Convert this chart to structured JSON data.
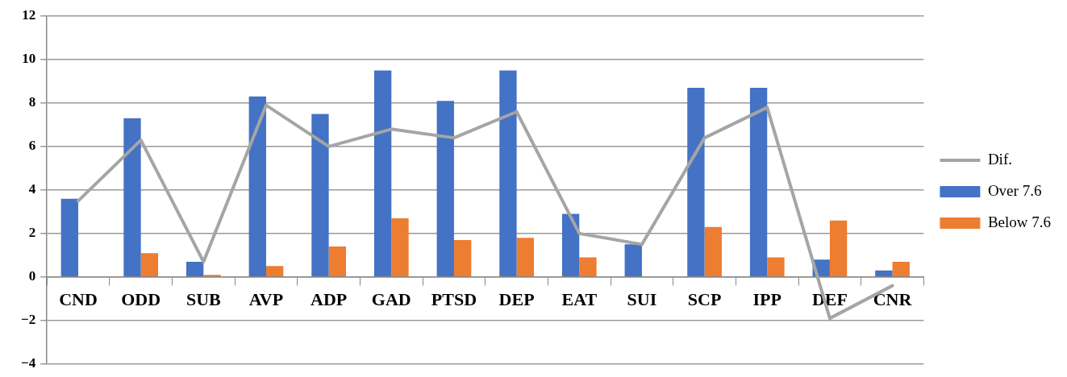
{
  "chart_data": {
    "type": "bar",
    "categories": [
      "CND",
      "ODD",
      "SUB",
      "AVP",
      "ADP",
      "GAD",
      "PTSD",
      "DEP",
      "EAT",
      "SUI",
      "SCP",
      "IPP",
      "DEF",
      "CNR"
    ],
    "series": [
      {
        "name": "Over 7.6",
        "color": "#4472c4",
        "values": [
          3.6,
          7.3,
          0.7,
          8.3,
          7.5,
          9.5,
          8.1,
          9.5,
          2.9,
          1.5,
          8.7,
          8.7,
          0.8,
          0.3
        ]
      },
      {
        "name": "Below 7.6",
        "color": "#ed7d31",
        "values": [
          0,
          1.1,
          0.1,
          0.5,
          1.4,
          2.7,
          1.7,
          1.8,
          0.9,
          0,
          2.3,
          0.9,
          2.6,
          0.7
        ]
      },
      {
        "name": "Dif.",
        "type": "line",
        "color": "#a5a5a5",
        "values": [
          3.5,
          6.3,
          0.7,
          7.9,
          6.0,
          6.8,
          6.4,
          7.6,
          2.0,
          1.5,
          6.4,
          7.8,
          -1.9,
          -0.4
        ]
      }
    ],
    "ylim": [
      -4,
      12
    ],
    "yticks": [
      {
        "value": -4,
        "label": "−4"
      },
      {
        "value": -2,
        "label": "−2"
      },
      0,
      2,
      4,
      6,
      8,
      10,
      12
    ],
    "grid": "y",
    "legend": "right",
    "marker": "none"
  }
}
